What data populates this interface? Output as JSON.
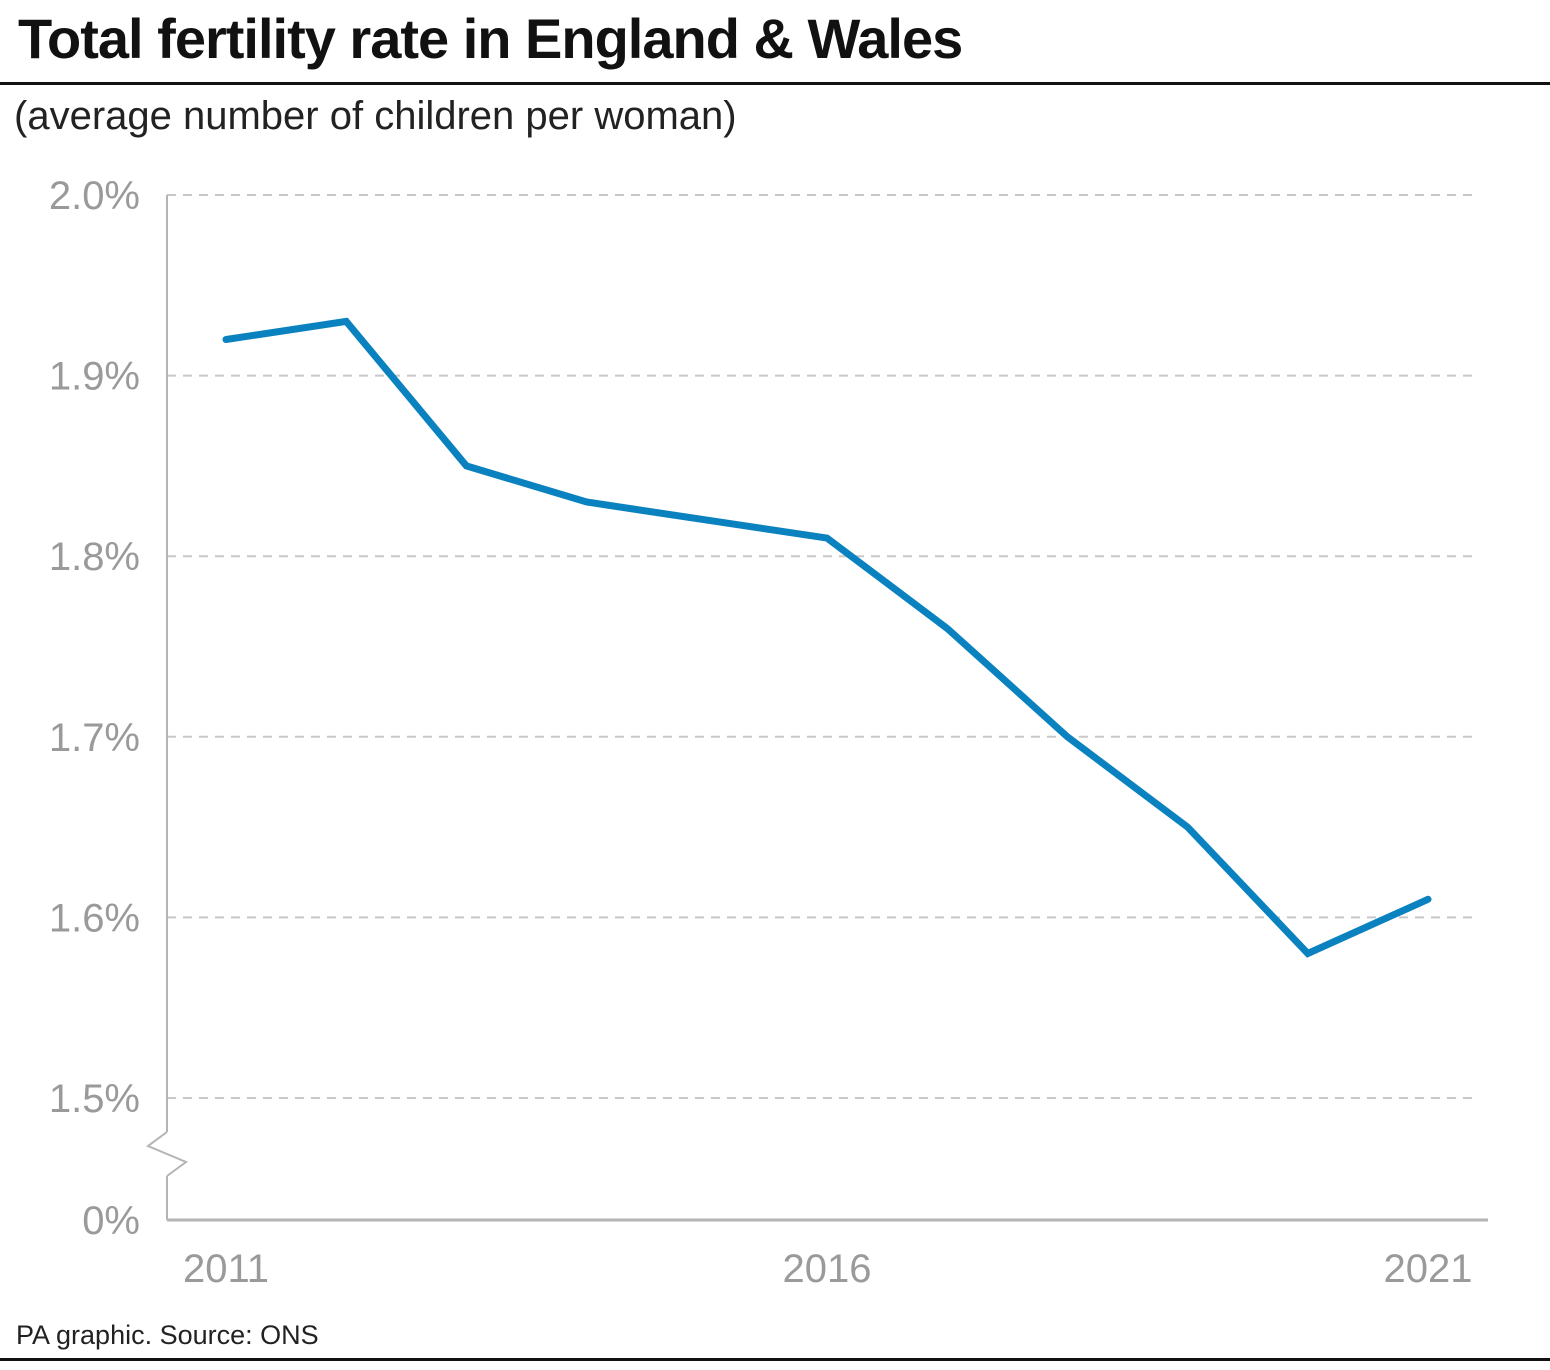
{
  "header": {
    "title": "Total fertility rate in England & Wales",
    "subtitle": "(average number of children per woman)"
  },
  "footer": {
    "source": "PA graphic. Source: ONS"
  },
  "colors": {
    "line": "#0a82bf",
    "grid": "#c8c8c8",
    "axis": "#b4b4b4",
    "tick_text": "#9a9a9a"
  },
  "chart_data": {
    "type": "line",
    "title": "Total fertility rate in England & Wales",
    "subtitle": "(average number of children per woman)",
    "xlabel": "",
    "ylabel": "",
    "x": [
      2011,
      2012,
      2013,
      2014,
      2015,
      2016,
      2017,
      2018,
      2019,
      2020,
      2021
    ],
    "series": [
      {
        "values": [
          1.92,
          1.93,
          1.85,
          1.83,
          1.82,
          1.81,
          1.76,
          1.7,
          1.65,
          1.58,
          1.61
        ]
      }
    ],
    "x_ticks": [
      {
        "value": 2011,
        "label": "2011"
      },
      {
        "value": 2016,
        "label": "2016"
      },
      {
        "value": 2021,
        "label": "2021"
      }
    ],
    "y_ticks": [
      {
        "value": 2.0,
        "label": "2.0%"
      },
      {
        "value": 1.9,
        "label": "1.9%"
      },
      {
        "value": 1.8,
        "label": "1.8%"
      },
      {
        "value": 1.7,
        "label": "1.7%"
      },
      {
        "value": 1.6,
        "label": "1.6%"
      },
      {
        "value": 1.5,
        "label": "1.5%"
      }
    ],
    "y_baseline": {
      "value": 0,
      "label": "0%"
    },
    "ylim": [
      1.5,
      2.0
    ],
    "axis_break": true,
    "grid": true,
    "legend": "none"
  }
}
